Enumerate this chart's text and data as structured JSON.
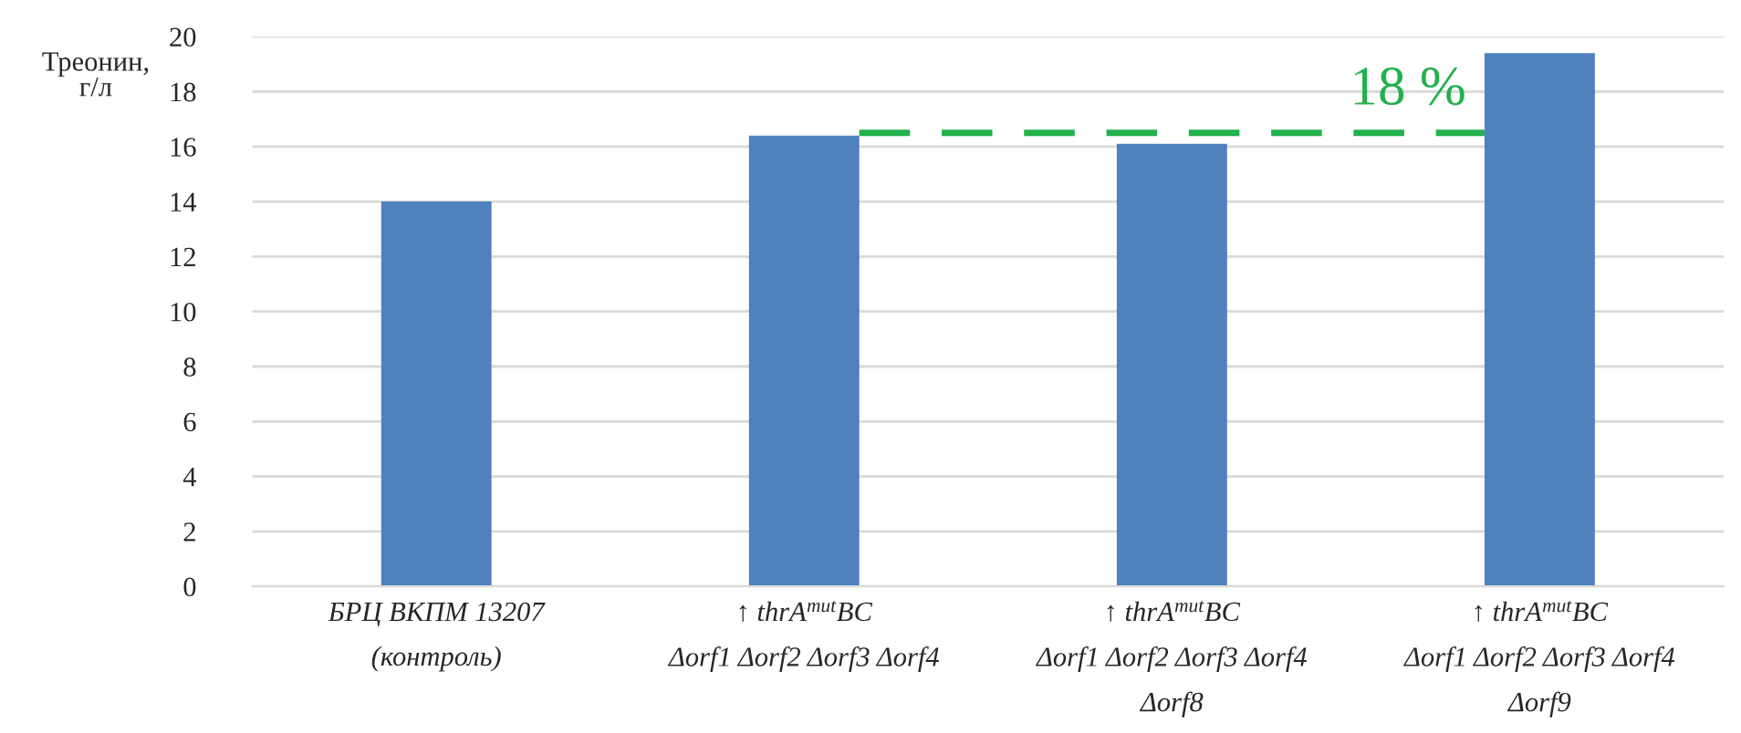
{
  "chart_data": {
    "type": "bar",
    "ylabel": "Треонин,\nг/л",
    "categories": [
      "БРЦ ВКПМ 13207\n(контроль)",
      "↑ thrA$^{mut}$BC\nΔorf1 Δorf2 Δorf3 Δorf4",
      "↑ thrA$^{mut}$BC\nΔorf1 Δorf2 Δorf3 Δorf4\nΔorf8",
      "↑ thrA$^{mut}$BC\nΔorf1 Δorf2 Δorf3 Δorf4\nΔorf9"
    ],
    "values": [
      14.0,
      16.4,
      16.1,
      19.4
    ],
    "color": "#4f81bd",
    "ylim": [
      0,
      20
    ],
    "yticks": [
      0,
      2,
      4,
      6,
      8,
      10,
      12,
      14,
      16,
      18,
      20
    ],
    "grid": "y",
    "ref_lines": [
      {
        "axis": "y",
        "value": 16.5,
        "color": "#22b14c",
        "line_style": "dashed"
      }
    ],
    "annotations": [
      "18 %"
    ]
  }
}
